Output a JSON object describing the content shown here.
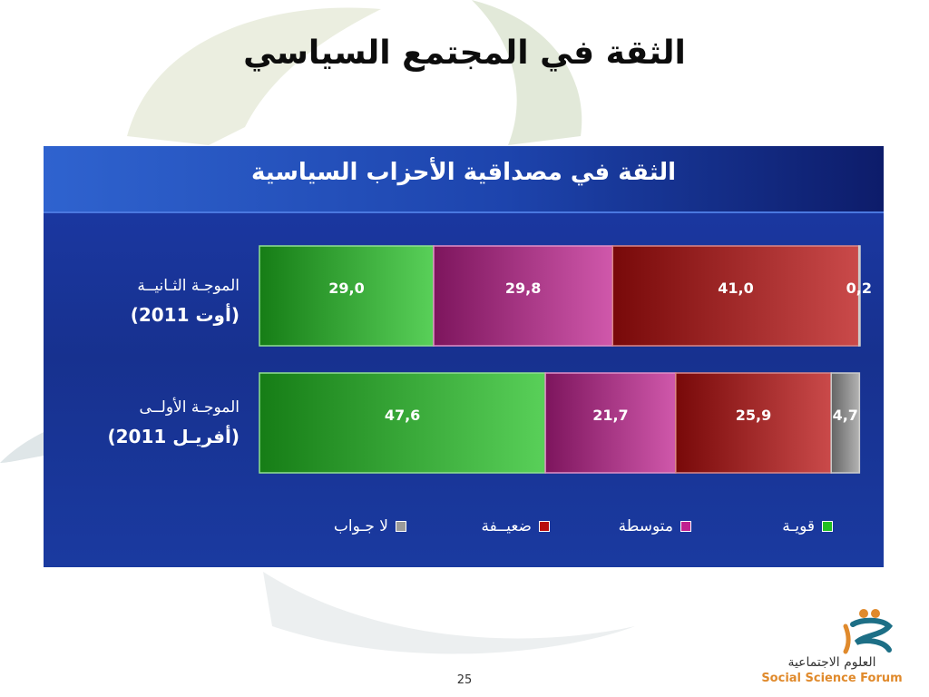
{
  "slide": {
    "title": "الثقة في المجتمع السياسي",
    "page_number": "25"
  },
  "logo": {
    "arabic": "العلوم الاجتماعية",
    "english": "Social Science Forum",
    "colors": {
      "orange": "#e08a2c",
      "teal": "#1d6f86"
    }
  },
  "chart_data": {
    "type": "bar",
    "orientation": "horizontal",
    "stacked": true,
    "percent_total": true,
    "title": "الثقة في مصداقية الأحزاب السياسية",
    "categories": [
      {
        "name": "الموجـة الثـانيــة",
        "period": "(أوت 2011)"
      },
      {
        "name": "الموجـة الأولــى",
        "period": "(أفريـل 2011)"
      }
    ],
    "series": [
      {
        "name": "قويـة",
        "values": [
          29.0,
          47.6
        ],
        "labels": [
          "29,0",
          "47,6"
        ],
        "color": "#22c022"
      },
      {
        "name": "متوسطة",
        "values": [
          29.8,
          21.7
        ],
        "labels": [
          "29,8",
          "21,7"
        ],
        "color": "#c0208f"
      },
      {
        "name": "ضعيــفة",
        "values": [
          41.0,
          25.9
        ],
        "labels": [
          "41,0",
          "25,9"
        ],
        "color": "#b80e0e"
      },
      {
        "name": "لا جـواب",
        "values": [
          0.2,
          4.7
        ],
        "labels": [
          "0,2",
          "4,7"
        ],
        "color": "#9a9a9a"
      }
    ],
    "xlim": [
      0,
      100
    ],
    "grid": false,
    "legend_position": "bottom"
  }
}
